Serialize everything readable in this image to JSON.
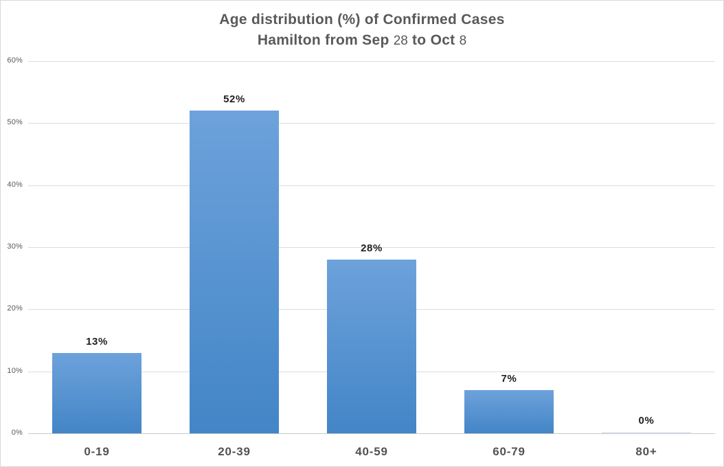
{
  "window": {
    "background": "#ffffff",
    "border_color": "#d9d9d9"
  },
  "title": {
    "line1": "Age distribution (%) of Confirmed Cases",
    "line2_parts": [
      {
        "text": "Hamilton from Sep ",
        "bold": true
      },
      {
        "text": "28",
        "bold": false
      },
      {
        "text": " to Oct ",
        "bold": true
      },
      {
        "text": "8",
        "bold": false
      }
    ],
    "color": "#595959"
  },
  "chart_data": {
    "type": "bar",
    "title": "Age distribution (%) of Confirmed Cases Hamilton from Sep 28 to Oct 8",
    "categories": [
      "0-19",
      "20-39",
      "40-59",
      "60-79",
      "80+"
    ],
    "values": [
      13,
      52,
      28,
      7,
      0
    ],
    "bar_labels": [
      "13%",
      "52%",
      "28%",
      "7%",
      "0%"
    ],
    "xlabel": "",
    "ylabel": "",
    "ylim": [
      0,
      60
    ],
    "ytick_interval": 10,
    "ytick_labels": [
      "0%",
      "10%",
      "20%",
      "30%",
      "40%",
      "50%",
      "60%"
    ],
    "grid": true,
    "legend": false,
    "colors": {
      "bar_gradient_top": "#6DA2DB",
      "bar_gradient_bottom": "#4385C7",
      "zero_bar": "#dfe7f1",
      "gridline": "#dcdcdc",
      "axis_line": "#c9c9c9",
      "value_label": "#1f1f1f",
      "tick_label": "#595959",
      "category_label": "#525252"
    }
  }
}
